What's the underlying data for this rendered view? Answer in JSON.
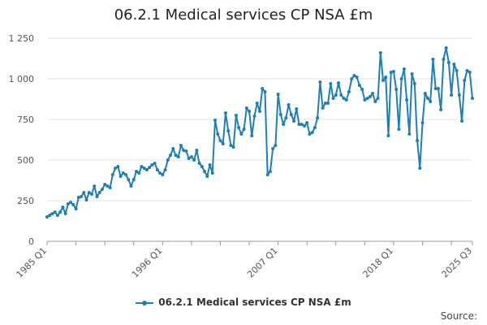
{
  "colors": {
    "series": "#1f7fb4",
    "grid": "#e6e6e6",
    "axis": "#999999"
  },
  "source_label": "Source:",
  "chart_data": {
    "type": "line",
    "title": "06.2.1 Medical services CP NSA £m",
    "xlabel": "",
    "ylabel": "",
    "ylim": [
      0,
      1250
    ],
    "yticks": [
      0,
      250,
      500,
      750,
      1000,
      1250
    ],
    "ytick_labels": [
      "0",
      "250",
      "500",
      "750",
      "1 000",
      "1 250"
    ],
    "x_tick_labels": [
      "1985 Q1",
      "1996 Q1",
      "2007 Q1",
      "2018 Q1",
      "2025 Q3"
    ],
    "x_tick_indices": [
      0,
      44,
      88,
      132,
      162
    ],
    "grid": true,
    "legend": "bottom-center",
    "series": [
      {
        "name": "06.2.1 Medical services CP NSA £m",
        "values": [
          150,
          160,
          170,
          180,
          160,
          180,
          210,
          170,
          230,
          240,
          225,
          200,
          270,
          275,
          300,
          255,
          300,
          290,
          340,
          275,
          300,
          320,
          350,
          340,
          330,
          410,
          450,
          460,
          400,
          420,
          410,
          380,
          340,
          380,
          430,
          420,
          460,
          450,
          440,
          455,
          470,
          480,
          440,
          420,
          410,
          440,
          500,
          530,
          570,
          530,
          520,
          590,
          560,
          555,
          510,
          520,
          500,
          560,
          480,
          460,
          430,
          400,
          470,
          420,
          745,
          660,
          620,
          600,
          790,
          680,
          590,
          580,
          775,
          700,
          660,
          690,
          820,
          800,
          650,
          770,
          850,
          800,
          940,
          920,
          410,
          430,
          570,
          590,
          905,
          780,
          720,
          760,
          840,
          780,
          740,
          815,
          720,
          720,
          710,
          730,
          660,
          670,
          700,
          760,
          980,
          820,
          850,
          850,
          970,
          880,
          900,
          975,
          900,
          880,
          870,
          920,
          1000,
          1020,
          1010,
          960,
          935,
          870,
          880,
          890,
          910,
          860,
          880,
          1160,
          990,
          1010,
          650,
          1040,
          1045,
          935,
          690,
          1000,
          1060,
          870,
          660,
          1030,
          970,
          620,
          450,
          730,
          910,
          880,
          860,
          1120,
          940,
          940,
          810,
          1120,
          1190,
          1100,
          900,
          1090,
          1050,
          900,
          740,
          990,
          1050,
          1040,
          880
        ]
      }
    ]
  }
}
